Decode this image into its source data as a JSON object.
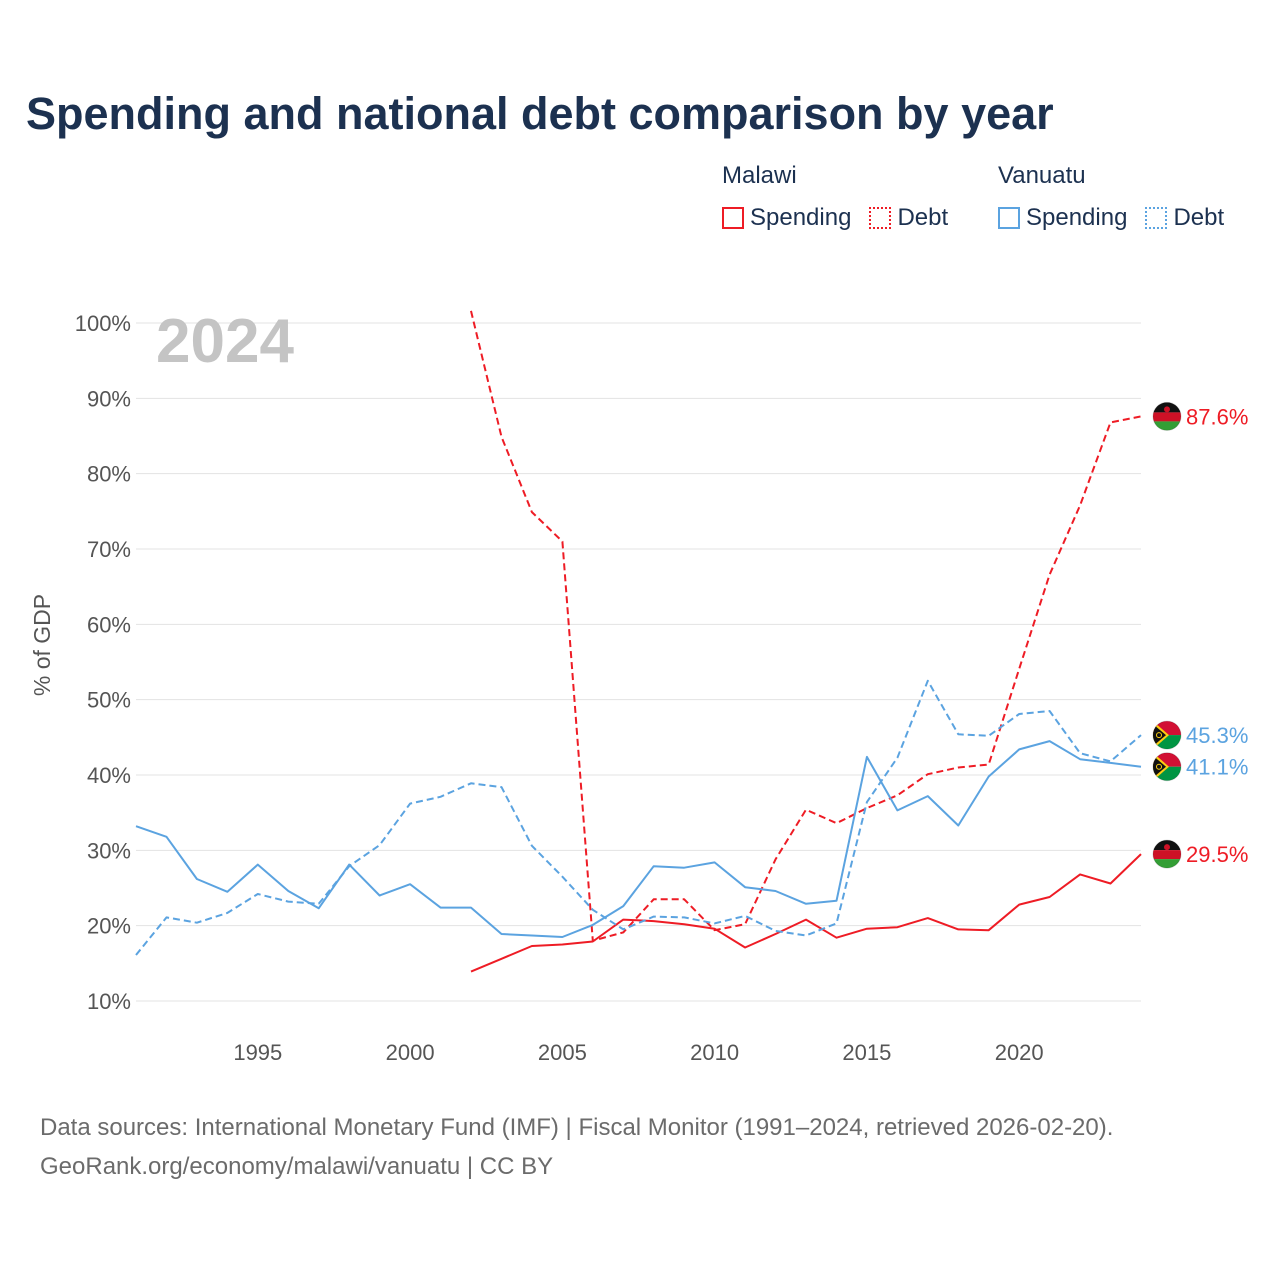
{
  "title": "Spending and national debt comparison by year",
  "legend": {
    "groups": [
      {
        "country": "Malawi",
        "color": "#ee1c25",
        "items": [
          {
            "label": "Spending",
            "style": "solid"
          },
          {
            "label": "Debt",
            "style": "dotted"
          }
        ]
      },
      {
        "country": "Vanuatu",
        "color": "#5ba3e0",
        "items": [
          {
            "label": "Spending",
            "style": "solid"
          },
          {
            "label": "Debt",
            "style": "dotted"
          }
        ]
      }
    ]
  },
  "year_label": "2024",
  "source": {
    "line1": "Data sources: International Monetary Fund (IMF) | Fiscal Monitor (1991–2024, retrieved 2026-02-20).",
    "line2": "GeoRank.org/economy/malawi/vanuatu | CC BY"
  },
  "chart_data": {
    "type": "line",
    "title": "Spending and national debt comparison by year",
    "xlabel": "",
    "ylabel": "% of GDP",
    "xlim": [
      1991,
      2024
    ],
    "ylim": [
      10,
      100
    ],
    "x_ticks": [
      1995,
      2000,
      2005,
      2010,
      2015,
      2020
    ],
    "y_ticks": [
      10,
      20,
      30,
      40,
      50,
      60,
      70,
      80,
      90,
      100
    ],
    "y_tick_labels": [
      "10%",
      "20%",
      "30%",
      "40%",
      "50%",
      "60%",
      "70%",
      "80%",
      "90%",
      "100%"
    ],
    "grid": true,
    "series": [
      {
        "name": "Malawi Spending",
        "color": "#ee1c25",
        "dash": "solid",
        "flag": "malawi",
        "end_label": "29.5%",
        "x": [
          2002,
          2003,
          2004,
          2005,
          2006,
          2007,
          2008,
          2009,
          2010,
          2011,
          2012,
          2013,
          2014,
          2015,
          2016,
          2017,
          2018,
          2019,
          2020,
          2021,
          2022,
          2023,
          2024
        ],
        "y": [
          13.9,
          15.6,
          17.3,
          17.5,
          17.9,
          20.8,
          20.6,
          20.2,
          19.6,
          17.1,
          18.9,
          20.8,
          18.4,
          19.6,
          19.8,
          21.0,
          19.5,
          19.4,
          22.8,
          23.8,
          26.8,
          25.6,
          29.5
        ]
      },
      {
        "name": "Malawi Debt",
        "color": "#ee1c25",
        "dash": "dashed",
        "flag": "malawi",
        "end_label": "87.6%",
        "x": [
          2002,
          2003,
          2004,
          2005,
          2006,
          2007,
          2008,
          2009,
          2010,
          2011,
          2012,
          2013,
          2014,
          2015,
          2016,
          2017,
          2018,
          2019,
          2020,
          2021,
          2022,
          2023,
          2024
        ],
        "y": [
          101.6,
          84.9,
          74.9,
          71.0,
          18.0,
          19.1,
          23.5,
          23.5,
          19.4,
          20.2,
          28.8,
          35.4,
          33.6,
          35.6,
          37.3,
          40.1,
          41.0,
          41.4,
          54.1,
          66.6,
          75.8,
          86.8,
          87.6
        ]
      },
      {
        "name": "Vanuatu Spending",
        "color": "#5ba3e0",
        "dash": "solid",
        "flag": "vanuatu",
        "end_label": "41.1%",
        "x": [
          1991,
          1992,
          1993,
          1994,
          1995,
          1996,
          1997,
          1998,
          1999,
          2000,
          2001,
          2002,
          2003,
          2004,
          2005,
          2006,
          2007,
          2008,
          2009,
          2010,
          2011,
          2012,
          2013,
          2014,
          2015,
          2016,
          2017,
          2018,
          2019,
          2020,
          2021,
          2022,
          2023,
          2024
        ],
        "y": [
          33.2,
          31.8,
          26.2,
          24.5,
          28.1,
          24.6,
          22.3,
          28.1,
          24.0,
          25.5,
          22.4,
          22.4,
          18.9,
          18.7,
          18.5,
          20.1,
          22.6,
          27.9,
          27.7,
          28.4,
          25.1,
          24.6,
          22.9,
          23.3,
          42.4,
          35.3,
          37.2,
          33.3,
          39.8,
          43.4,
          44.5,
          42.1,
          41.6,
          41.1
        ]
      },
      {
        "name": "Vanuatu Debt",
        "color": "#5ba3e0",
        "dash": "dashed",
        "flag": "vanuatu",
        "end_label": "45.3%",
        "x": [
          1991,
          1992,
          1993,
          1994,
          1995,
          1996,
          1997,
          1998,
          1999,
          2000,
          2001,
          2002,
          2003,
          2004,
          2005,
          2006,
          2007,
          2008,
          2009,
          2010,
          2011,
          2012,
          2013,
          2014,
          2015,
          2016,
          2017,
          2018,
          2019,
          2020,
          2021,
          2022,
          2023,
          2024
        ],
        "y": [
          16.1,
          21.1,
          20.4,
          21.7,
          24.2,
          23.2,
          22.9,
          27.9,
          30.7,
          36.2,
          37.1,
          38.9,
          38.4,
          30.6,
          26.5,
          22.1,
          19.5,
          21.2,
          21.1,
          20.3,
          21.3,
          19.3,
          18.7,
          20.3,
          36.4,
          42.3,
          52.5,
          45.4,
          45.2,
          48.1,
          48.5,
          42.9,
          41.8,
          45.3
        ]
      }
    ]
  }
}
